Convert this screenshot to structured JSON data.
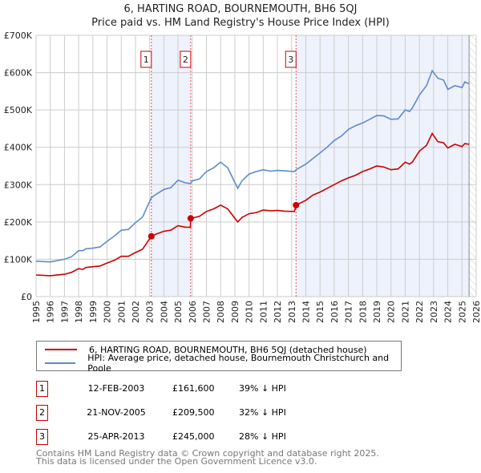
{
  "title": "6, HARTING ROAD, BOURNEMOUTH, BH6 5QJ",
  "subtitle": "Price paid vs. HM Land Registry's House Price Index (HPI)",
  "chart_data": {
    "type": "line",
    "xlim": [
      1995,
      2026
    ],
    "ylim": [
      0,
      700000
    ],
    "x_ticks": [
      "1995",
      "1996",
      "1997",
      "1998",
      "1999",
      "2000",
      "2001",
      "2002",
      "2003",
      "2004",
      "2005",
      "2006",
      "2007",
      "2008",
      "2009",
      "2010",
      "2011",
      "2012",
      "2013",
      "2014",
      "2015",
      "2016",
      "2017",
      "2018",
      "2019",
      "2020",
      "2021",
      "2022",
      "2023",
      "2024",
      "2025",
      "2026"
    ],
    "y_ticks": [
      {
        "value": 0,
        "label": "£0"
      },
      {
        "value": 100000,
        "label": "£100K"
      },
      {
        "value": 200000,
        "label": "£200K"
      },
      {
        "value": 300000,
        "label": "£300K"
      },
      {
        "value": 400000,
        "label": "£400K"
      },
      {
        "value": 500000,
        "label": "£500K"
      },
      {
        "value": 600000,
        "label": "£600K"
      },
      {
        "value": 700000,
        "label": "£700K"
      }
    ],
    "grid": true,
    "future_hatch_from": 2025.5,
    "colors": {
      "property": "#cc0000",
      "hpi": "#5b8bd0",
      "shade": "#eef2fc",
      "marker_line": "#e05050"
    },
    "series": [
      {
        "name": "6, HARTING ROAD, BOURNEMOUTH, BH6 5QJ (detached house)",
        "color": "#cc0000",
        "x": [
          1995,
          1996,
          1997,
          1997.5,
          1998,
          1998.3,
          1998.5,
          1999,
          1999.5,
          2000,
          2000.5,
          2001,
          2001.5,
          2002,
          2002.5,
          2003.12,
          2003.5,
          2004,
          2004.5,
          2005,
          2005.5,
          2005.87,
          2005.89,
          2006.5,
          2007,
          2007.5,
          2008,
          2008.5,
          2009.2,
          2009.5,
          2010,
          2010.5,
          2011,
          2011.5,
          2012,
          2012.5,
          2013.2,
          2013.31,
          2014,
          2014.5,
          2015,
          2015.5,
          2016,
          2016.5,
          2017,
          2017.5,
          2018,
          2018.5,
          2019,
          2019.5,
          2020,
          2020.5,
          2021,
          2021.3,
          2021.5,
          2022,
          2022.5,
          2022.9,
          2023.3,
          2023.7,
          2024,
          2024.5,
          2025,
          2025.2,
          2025.5
        ],
        "y": [
          58000,
          56000,
          60000,
          65000,
          75000,
          73000,
          78000,
          80000,
          82000,
          90000,
          97000,
          108000,
          108000,
          118000,
          127000,
          161600,
          168000,
          175000,
          178000,
          190000,
          186000,
          186000,
          209500,
          215000,
          228000,
          235000,
          245000,
          235000,
          200000,
          212000,
          222000,
          225000,
          232000,
          230000,
          231000,
          229000,
          228000,
          245000,
          258000,
          272000,
          280000,
          290000,
          300000,
          310000,
          318000,
          325000,
          335000,
          342000,
          350000,
          347000,
          340000,
          342000,
          360000,
          355000,
          360000,
          390000,
          405000,
          437000,
          415000,
          412000,
          398000,
          408000,
          402000,
          410000,
          408000
        ]
      },
      {
        "name": "HPI: Average price, detached house, Bournemouth Christchurch and Poole",
        "color": "#5b8bd0",
        "x": [
          1995,
          1996,
          1997,
          1997.5,
          1998,
          1998.3,
          1998.5,
          1999,
          1999.5,
          2000,
          2000.5,
          2001,
          2001.5,
          2002,
          2002.5,
          2003.12,
          2003.5,
          2004,
          2004.5,
          2005,
          2005.5,
          2005.87,
          2006,
          2006.5,
          2007,
          2007.5,
          2008,
          2008.5,
          2009.2,
          2009.5,
          2010,
          2010.5,
          2011,
          2011.5,
          2012,
          2012.5,
          2013.2,
          2013.31,
          2014,
          2014.5,
          2015,
          2015.5,
          2016,
          2016.5,
          2017,
          2017.5,
          2018,
          2018.5,
          2019,
          2019.5,
          2020,
          2020.5,
          2021,
          2021.3,
          2021.5,
          2022,
          2022.5,
          2022.9,
          2023.3,
          2023.7,
          2024,
          2024.5,
          2025,
          2025.2,
          2025.5
        ],
        "y": [
          95000,
          93000,
          100000,
          107000,
          123000,
          123000,
          128000,
          130000,
          133000,
          148000,
          162000,
          178000,
          180000,
          198000,
          213000,
          265000,
          275000,
          287000,
          292000,
          312000,
          305000,
          303000,
          310000,
          315000,
          335000,
          345000,
          360000,
          345000,
          290000,
          310000,
          328000,
          335000,
          340000,
          336000,
          338000,
          337000,
          335000,
          340000,
          355000,
          370000,
          385000,
          400000,
          418000,
          430000,
          448000,
          458000,
          465000,
          475000,
          485000,
          484000,
          475000,
          476000,
          500000,
          496000,
          505000,
          540000,
          565000,
          605000,
          585000,
          580000,
          555000,
          565000,
          560000,
          575000,
          570000
        ]
      }
    ],
    "sales": [
      {
        "id": "1",
        "x": 2003.12,
        "price": 161600
      },
      {
        "id": "2",
        "x": 2005.89,
        "price": 209500
      },
      {
        "id": "3",
        "x": 2013.31,
        "price": 245000
      }
    ]
  },
  "legend": {
    "property": "6, HARTING ROAD, BOURNEMOUTH, BH6 5QJ (detached house)",
    "hpi": "HPI: Average price, detached house, Bournemouth Christchurch and Poole"
  },
  "transactions": [
    {
      "num": "1",
      "date": "12-FEB-2003",
      "price": "£161,600",
      "hpi": "39% ↓ HPI"
    },
    {
      "num": "2",
      "date": "21-NOV-2005",
      "price": "£209,500",
      "hpi": "32% ↓ HPI"
    },
    {
      "num": "3",
      "date": "25-APR-2013",
      "price": "£245,000",
      "hpi": "28% ↓ HPI"
    }
  ],
  "footer": {
    "line1": "Contains HM Land Registry data © Crown copyright and database right 2025.",
    "line2": "This data is licensed under the Open Government Licence v3.0."
  }
}
